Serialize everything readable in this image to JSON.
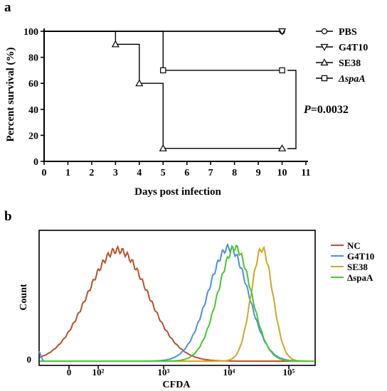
{
  "chart_data": [
    {
      "panel": "a",
      "type": "line",
      "step": true,
      "xlabel": "Days post infection",
      "ylabel": "Percent survival (%)",
      "xlim": [
        0,
        11
      ],
      "ylim": [
        0,
        100
      ],
      "xticks": [
        0,
        1,
        2,
        3,
        4,
        5,
        6,
        7,
        8,
        9,
        10,
        11
      ],
      "yticks": [
        0,
        20,
        40,
        60,
        80,
        100
      ],
      "legend_position": "right",
      "series": [
        {
          "name": "PBS",
          "marker": "circle",
          "points": [
            [
              0,
              100
            ],
            [
              10,
              100
            ]
          ]
        },
        {
          "name": "G4T10",
          "marker": "triangle-down",
          "points": [
            [
              0,
              100
            ],
            [
              10,
              100
            ]
          ]
        },
        {
          "name": "SE38",
          "marker": "triangle-up",
          "points": [
            [
              0,
              100
            ],
            [
              3,
              90
            ],
            [
              4,
              60
            ],
            [
              5,
              10
            ],
            [
              10,
              10
            ]
          ]
        },
        {
          "name": "ΔspaA",
          "marker": "square",
          "points": [
            [
              0,
              100
            ],
            [
              5,
              70
            ],
            [
              10,
              70
            ]
          ]
        }
      ],
      "annotation": {
        "italic": "P",
        "text": "=0.0032"
      }
    },
    {
      "panel": "b",
      "type": "line",
      "xlabel": "CFDA",
      "ylabel": "Count",
      "x_scale": "biexponential",
      "xticks": [
        "0",
        "10²",
        "10³",
        "10⁴",
        "10⁵"
      ],
      "yticks": [
        "0"
      ],
      "legend_position": "right",
      "series": [
        {
          "name": "NC",
          "color": "#b5532a",
          "center_log": 2.3,
          "width": 0.46,
          "peak": 0.93
        },
        {
          "name": "G4T10",
          "color": "#4d8fe0",
          "center_log": 4.0,
          "width": 0.32,
          "peak": 0.95
        },
        {
          "name": "SE38",
          "color": "#d0a52a",
          "center_log": 4.55,
          "width": 0.18,
          "peak": 0.94
        },
        {
          "name": "ΔspaA",
          "color": "#4cc433",
          "center_log": 4.1,
          "width": 0.27,
          "peak": 0.95
        }
      ]
    }
  ],
  "labels": {
    "a": "a",
    "b": "b"
  }
}
